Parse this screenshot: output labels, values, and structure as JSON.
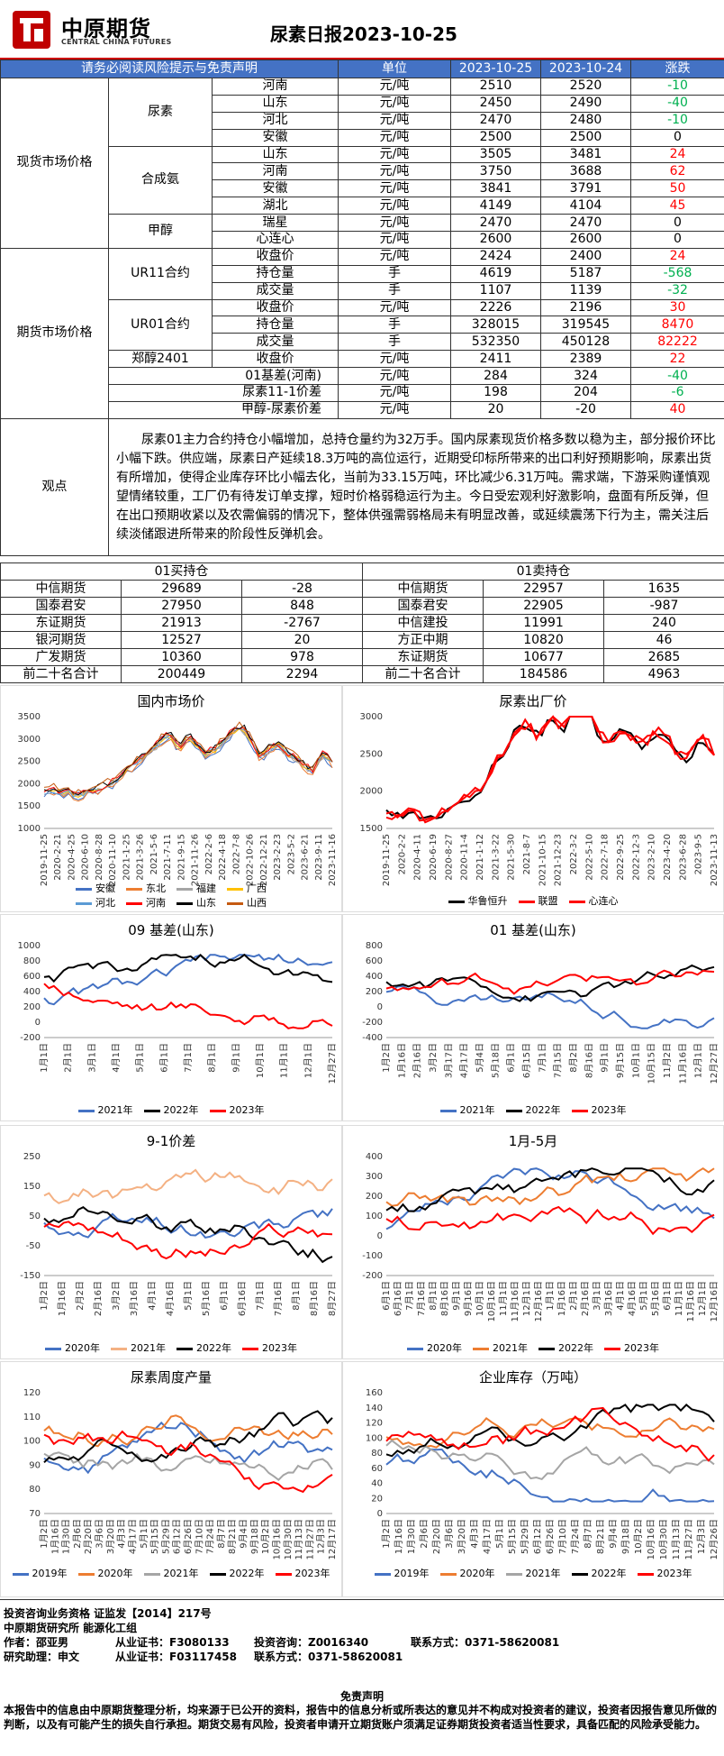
{
  "header": {
    "logo_cn": "中原期货",
    "logo_en": "CENTRAL CHINA FUTURES",
    "title": "尿素日报2023-10-25"
  },
  "table_header": {
    "notice": "请务必阅读风险提示与免责声明",
    "unit": "单位",
    "date1": "2023-10-25",
    "date2": "2023-10-24",
    "change": "涨跌"
  },
  "spot": {
    "section": "现货市场价格",
    "urea": {
      "group": "尿素",
      "rows": [
        {
          "name": "河南",
          "unit": "元/吨",
          "v1": "2510",
          "v2": "2520",
          "chg": "-10",
          "dir": "down"
        },
        {
          "name": "山东",
          "unit": "元/吨",
          "v1": "2450",
          "v2": "2490",
          "chg": "-40",
          "dir": "down"
        },
        {
          "name": "河北",
          "unit": "元/吨",
          "v1": "2470",
          "v2": "2480",
          "chg": "-10",
          "dir": "down"
        },
        {
          "name": "安徽",
          "unit": "元/吨",
          "v1": "2500",
          "v2": "2500",
          "chg": "0",
          "dir": "flat"
        }
      ]
    },
    "ammonia": {
      "group": "合成氨",
      "rows": [
        {
          "name": "山东",
          "unit": "元/吨",
          "v1": "3505",
          "v2": "3481",
          "chg": "24",
          "dir": "up"
        },
        {
          "name": "河南",
          "unit": "元/吨",
          "v1": "3750",
          "v2": "3688",
          "chg": "62",
          "dir": "up"
        },
        {
          "name": "安徽",
          "unit": "元/吨",
          "v1": "3841",
          "v2": "3791",
          "chg": "50",
          "dir": "up"
        },
        {
          "name": "湖北",
          "unit": "元/吨",
          "v1": "4149",
          "v2": "4104",
          "chg": "45",
          "dir": "up"
        }
      ]
    },
    "methanol": {
      "group": "甲醇",
      "rows": [
        {
          "name": "瑞星",
          "unit": "元/吨",
          "v1": "2470",
          "v2": "2470",
          "chg": "0",
          "dir": "flat"
        },
        {
          "name": "心连心",
          "unit": "元/吨",
          "v1": "2600",
          "v2": "2600",
          "chg": "0",
          "dir": "flat"
        }
      ]
    }
  },
  "futures": {
    "section": "期货市场价格",
    "ur11": {
      "group": "UR11合约",
      "rows": [
        {
          "name": "收盘价",
          "unit": "元/吨",
          "v1": "2424",
          "v2": "2400",
          "chg": "24",
          "dir": "up"
        },
        {
          "name": "持仓量",
          "unit": "手",
          "v1": "4619",
          "v2": "5187",
          "chg": "-568",
          "dir": "down"
        },
        {
          "name": "成交量",
          "unit": "手",
          "v1": "1107",
          "v2": "1139",
          "chg": "-32",
          "dir": "down"
        }
      ]
    },
    "ur01": {
      "group": "UR01合约",
      "rows": [
        {
          "name": "收盘价",
          "unit": "元/吨",
          "v1": "2226",
          "v2": "2196",
          "chg": "30",
          "dir": "up"
        },
        {
          "name": "持仓量",
          "unit": "手",
          "v1": "328015",
          "v2": "319545",
          "chg": "8470",
          "dir": "up"
        },
        {
          "name": "成交量",
          "unit": "手",
          "v1": "532350",
          "v2": "450128",
          "chg": "82222",
          "dir": "up"
        }
      ]
    },
    "zz2401": {
      "group": "郑醇2401",
      "name": "收盘价",
      "unit": "元/吨",
      "v1": "2411",
      "v2": "2389",
      "chg": "22",
      "dir": "up"
    },
    "spreads": [
      {
        "name": "01基差(河南)",
        "unit": "元/吨",
        "v1": "284",
        "v2": "324",
        "chg": "-40",
        "dir": "down"
      },
      {
        "name": "尿素11-1价差",
        "unit": "元/吨",
        "v1": "198",
        "v2": "204",
        "chg": "-6",
        "dir": "down"
      },
      {
        "name": "甲醇-尿素价差",
        "unit": "元/吨",
        "v1": "20",
        "v2": "-20",
        "chg": "40",
        "dir": "up"
      }
    ]
  },
  "outlook": {
    "label": "观点",
    "text": "尿素01主力合约持仓小幅增加，总持仓量约为32万手。国内尿素现货价格多数以稳为主，部分报价环比小幅下跌。供应端，尿素日产延续18.3万吨的高位运行，近期受印标所带来的出口利好预期影响，尿素出货有所增加，使得企业库存环比小幅去化，当前为33.15万吨，环比减少6.31万吨。需求端，下游采购谨慎观望情绪较重，工厂仍有待发订单支撑，短时价格弱稳运行为主。今日受宏观利好激影响，盘面有所反弹，但在出口预期收紧以及农需偏弱的情况下，整体供强需弱格局未有明显改善，或延续震荡下行为主，需关注后续淡储跟进所带来的阶段性反弹机会。"
  },
  "positions": {
    "long_title": "01买持仓",
    "short_title": "01卖持仓",
    "rows": [
      {
        "l_name": "中信期货",
        "l_val": "29689",
        "l_chg": "-28",
        "s_name": "中信期货",
        "s_val": "22957",
        "s_chg": "1635"
      },
      {
        "l_name": "国泰君安",
        "l_val": "27950",
        "l_chg": "848",
        "s_name": "国泰君安",
        "s_val": "22905",
        "s_chg": "-987"
      },
      {
        "l_name": "东证期货",
        "l_val": "21913",
        "l_chg": "-2767",
        "s_name": "中信建投",
        "s_val": "11991",
        "s_chg": "240"
      },
      {
        "l_name": "银河期货",
        "l_val": "12527",
        "l_chg": "20",
        "s_name": "方正中期",
        "s_val": "10820",
        "s_chg": "46"
      },
      {
        "l_name": "广发期货",
        "l_val": "10360",
        "l_chg": "978",
        "s_name": "东证期货",
        "s_val": "10677",
        "s_chg": "2685"
      },
      {
        "l_name": "前二十名合计",
        "l_val": "200449",
        "l_chg": "2294",
        "s_name": "前二十名合计",
        "s_val": "184586",
        "s_chg": "4963"
      }
    ]
  },
  "chart_data": [
    {
      "id": "domestic",
      "type": "line",
      "title": "国内市场价",
      "ylim": [
        1000,
        3500
      ],
      "yticks": [
        "3500",
        "3000",
        "2500",
        "2000",
        "1500",
        "1000"
      ],
      "xticks": [
        "2019-11-25",
        "2020-2-21",
        "2020-4-25",
        "2020-6-10",
        "2020-8-28",
        "2020-11-10",
        "2021-1-25",
        "2021-3-26",
        "2021-5-6",
        "2021-7-11",
        "2021-9-15",
        "2021-11-26",
        "2022-2-6",
        "2022-4-18",
        "2022-7-8",
        "2022-10-26",
        "2022-12-21",
        "2023-2-23",
        "2023-5-2",
        "2023-6-21",
        "2023-9-11",
        "2023-11-16"
      ],
      "legend": [
        {
          "name": "安徽",
          "color": "#4472c4"
        },
        {
          "name": "东北",
          "color": "#ed7d31"
        },
        {
          "name": "福建",
          "color": "#a5a5a5"
        },
        {
          "name": "广西",
          "color": "#ffc000"
        },
        {
          "name": "河北",
          "color": "#5b9bd5"
        },
        {
          "name": "河南",
          "color": "#ff0000"
        },
        {
          "name": "山东",
          "color": "#000000"
        },
        {
          "name": "山西",
          "color": "#c55a11"
        }
      ],
      "series_shape": [
        1750,
        1800,
        1720,
        1700,
        1650,
        1750,
        1800,
        1900,
        2000,
        2200,
        2350,
        2500,
        2700,
        2900,
        3050,
        2700,
        3000,
        2800,
        2600,
        2700,
        2900,
        3100,
        3200,
        2900,
        2500,
        2700,
        2800,
        2600,
        2500,
        2300,
        2200,
        2600,
        2400
      ]
    },
    {
      "id": "factory",
      "type": "line",
      "title": "尿素出厂价",
      "ylim": [
        1500,
        3000
      ],
      "yticks": [
        "3000",
        "2500",
        "2000",
        "1500"
      ],
      "xticks": [
        "2019-11-25",
        "2020-2-2",
        "2020-4-11",
        "2020-6-19",
        "2020-8-27",
        "2020-11-4",
        "2021-1-12",
        "2021-3-22",
        "2021-5-30",
        "2021-8-7",
        "2021-10-15",
        "2021-12-23",
        "2022-3-2",
        "2022-5-10",
        "2022-7-18",
        "2022-9-25",
        "2022-12-3",
        "2023-2-10",
        "2023-4-20",
        "2023-6-28",
        "2023-9-5",
        "2023-11-13"
      ],
      "legend": [
        {
          "name": "华鲁恒升",
          "color": "#000000"
        },
        {
          "name": "联盟",
          "color": "#ff0000"
        },
        {
          "name": "心连心",
          "color": "#ff0000"
        }
      ],
      "series_shape": [
        1700,
        1650,
        1700,
        1600,
        1650,
        1700,
        1800,
        1900,
        2000,
        2300,
        2500,
        2800,
        2900,
        2700,
        3000,
        2800,
        3100,
        3150,
        2800,
        2600,
        2800,
        2700,
        2600,
        2800,
        2700,
        2400,
        2500,
        2700,
        2500
      ]
    },
    {
      "id": "basis09",
      "type": "line",
      "title": "09 基差(山东)",
      "ylim": [
        -200,
        1000
      ],
      "yticks": [
        "1000",
        "800",
        "600",
        "400",
        "200",
        "0",
        "-200"
      ],
      "xticks": [
        "1月1日",
        "2月1日",
        "3月1日",
        "4月1日",
        "5月1日",
        "6月1日",
        "7月1日",
        "8月1日",
        "9月1日",
        "10月1日",
        "11月1日",
        "12月1日",
        "12月27日"
      ],
      "legend": [
        {
          "name": "2021年",
          "color": "#4472c4"
        },
        {
          "name": "2022年",
          "color": "#000000"
        },
        {
          "name": "2023年",
          "color": "#ff0000"
        }
      ]
    },
    {
      "id": "basis01",
      "type": "line",
      "title": "01 基差(山东)",
      "ylim": [
        -400,
        800
      ],
      "yticks": [
        "800",
        "600",
        "400",
        "200",
        "0",
        "-200",
        "-400"
      ],
      "xticks": [
        "1月2日",
        "1月16日",
        "2月16日",
        "3月2日",
        "3月17日",
        "4月17日",
        "5月4日",
        "5月18日",
        "6月1日",
        "6月15日",
        "7月1日",
        "7月15日",
        "8月2日",
        "8月16日",
        "9月1日",
        "9月15日",
        "10月1日",
        "10月15日",
        "11月2日",
        "11月16日",
        "12月1日",
        "12月27日"
      ],
      "legend": [
        {
          "name": "2021年",
          "color": "#4472c4"
        },
        {
          "name": "2022年",
          "color": "#000000"
        },
        {
          "name": "2023年",
          "color": "#ff0000"
        }
      ]
    },
    {
      "id": "spread91",
      "type": "line",
      "title": "9-1价差",
      "ylim": [
        -150,
        250
      ],
      "yticks": [
        "250",
        "150",
        "50",
        "-50",
        "-150"
      ],
      "xticks": [
        "1月2日",
        "1月16日",
        "2月2日",
        "2月16日",
        "3月2日",
        "3月16日",
        "4月1日",
        "4月16日",
        "5月1日",
        "5月16日",
        "6月1日",
        "6月16日",
        "7月1日",
        "7月16日",
        "8月1日",
        "8月16日",
        "8月27日"
      ],
      "legend": [
        {
          "name": "2020年",
          "color": "#4472c4"
        },
        {
          "name": "2021年",
          "color": "#f4b183"
        },
        {
          "name": "2022年",
          "color": "#000000"
        },
        {
          "name": "2023年",
          "color": "#ff0000"
        }
      ]
    },
    {
      "id": "spread15",
      "type": "line",
      "title": "1月-5月",
      "ylim": [
        -200,
        400
      ],
      "yticks": [
        "400",
        "300",
        "200",
        "100",
        "0",
        "-100",
        "-200"
      ],
      "xticks": [
        "6月1日",
        "6月16日",
        "7月1日",
        "7月16日",
        "8月1日",
        "8月16日",
        "9月1日",
        "9月16日",
        "10月1日",
        "10月16日",
        "11月1日",
        "11月16日",
        "12月1日",
        "12月16日",
        "1月1日",
        "1月16日",
        "2月1日",
        "2月16日",
        "3月1日",
        "3月16日",
        "4月1日",
        "4月16日",
        "5月1日",
        "5月16日",
        "6月1日",
        "11月1日",
        "11月16日",
        "12月1日",
        "12月16日"
      ],
      "legend": [
        {
          "name": "2020年",
          "color": "#4472c4"
        },
        {
          "name": "2021年",
          "color": "#ed7d31"
        },
        {
          "name": "2022年",
          "color": "#000000"
        },
        {
          "name": "2023年",
          "color": "#ff0000"
        }
      ]
    },
    {
      "id": "output",
      "type": "line",
      "title": "尿素周度产量",
      "ylim": [
        70,
        120
      ],
      "yticks": [
        "120",
        "110",
        "100",
        "90",
        "80",
        "70"
      ],
      "xticks": [
        "1月2日",
        "1月16日",
        "1月30日",
        "2月6日",
        "2月20日",
        "3月6日",
        "3月20日",
        "4月3日",
        "4月17日",
        "5月1日",
        "5月15日",
        "5月29日",
        "6月12日",
        "6月26日",
        "7月10日",
        "7月24日",
        "8月7日",
        "8月21日",
        "9月4日",
        "9月18日",
        "10月2日",
        "10月16日",
        "10月30日",
        "11月13日",
        "11月27日",
        "12月3日",
        "12月17日"
      ],
      "legend": [
        {
          "name": "2019年",
          "color": "#4472c4"
        },
        {
          "name": "2020年",
          "color": "#ed7d31"
        },
        {
          "name": "2021年",
          "color": "#a5a5a5"
        },
        {
          "name": "2022年",
          "color": "#000000"
        },
        {
          "name": "2023年",
          "color": "#ff0000"
        }
      ]
    },
    {
      "id": "inventory",
      "type": "line",
      "title": "企业库存（万吨）",
      "ylim": [
        0,
        160
      ],
      "yticks": [
        "160",
        "140",
        "120",
        "100",
        "80",
        "60",
        "40",
        "20",
        "0"
      ],
      "xticks": [
        "1月2日",
        "1月16日",
        "1月30日",
        "2月6日",
        "2月20日",
        "3月6日",
        "3月20日",
        "4月3日",
        "4月17日",
        "5月1日",
        "5月15日",
        "5月29日",
        "6月12日",
        "6月26日",
        "7月10日",
        "7月24日",
        "8月7日",
        "8月21日",
        "9月4日",
        "9月18日",
        "10月2日",
        "10月16日",
        "10月30日",
        "11月13日",
        "11月27日",
        "12月3日",
        "12月26日"
      ],
      "legend": [
        {
          "name": "2019年",
          "color": "#4472c4"
        },
        {
          "name": "2020年",
          "color": "#ed7d31"
        },
        {
          "name": "2021年",
          "color": "#a5a5a5"
        },
        {
          "name": "2022年",
          "color": "#000000"
        },
        {
          "name": "2023年",
          "color": "#ff0000"
        }
      ]
    }
  ],
  "footer": {
    "line1": "投资咨询业务资格   证监发【2014】217号",
    "line2": "中原期货研究所   能源化工组",
    "author_label": "作者：邵亚男",
    "cert1": "从业证书：F3080133",
    "advisory": "投资咨询：Z0016340",
    "contact1": "联系方式：0371-58620081",
    "helper_label": "研究助理：申文",
    "cert2": "从业证书：F03117458",
    "contact2": "联系方式：0371-58620081",
    "disclaimer_title": "免责声明",
    "disclaimer_text": "本报告中的信息由中原期货整理分析，均来源于已公开的资料，报告中的信息分析或所表达的意见并不构成对投资者的建议，投资者因报告意见所做的判断，以及有可能产生的损失自行承担。期货交易有风险，投资者申请开立期货账户须满足证券期货投资者适当性要求，具备匹配的风险承受能力。"
  }
}
